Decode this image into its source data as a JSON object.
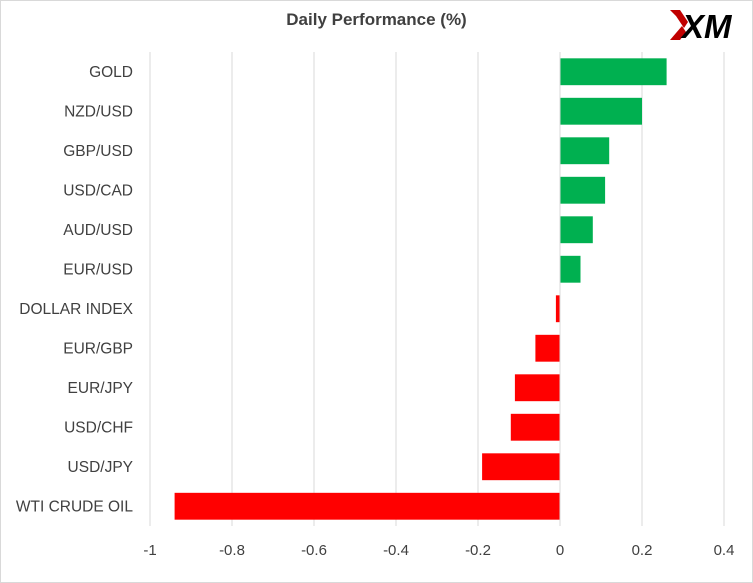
{
  "chart_data": {
    "type": "bar",
    "orientation": "horizontal",
    "title": "Daily Performance  (%)",
    "categories": [
      "GOLD",
      "NZD/USD",
      "GBP/USD",
      "USD/CAD",
      "AUD/USD",
      "EUR/USD",
      "DOLLAR INDEX",
      "EUR/GBP",
      "EUR/JPY",
      "USD/CHF",
      "USD/JPY",
      "WTI CRUDE OIL"
    ],
    "values": [
      0.26,
      0.2,
      0.12,
      0.11,
      0.08,
      0.05,
      -0.01,
      -0.06,
      -0.11,
      -0.12,
      -0.19,
      -0.94
    ],
    "xlim": [
      -1,
      0.4
    ],
    "xticks": [
      "-1",
      "-0.8",
      "-0.6",
      "-0.4",
      "-0.2",
      "0",
      "0.2",
      "0.4"
    ],
    "xtick_values": [
      -1,
      -0.8,
      -0.6,
      -0.4,
      -0.2,
      0,
      0.2,
      0.4
    ],
    "grid": true,
    "legend": "none",
    "colors": {
      "positive": "#00b050",
      "negative": "#ff0000",
      "grid": "#d9d9d9",
      "text": "#404040"
    }
  },
  "logo": {
    "text": "XM",
    "colors": {
      "mark": "#c00000",
      "text": "#000000"
    }
  }
}
